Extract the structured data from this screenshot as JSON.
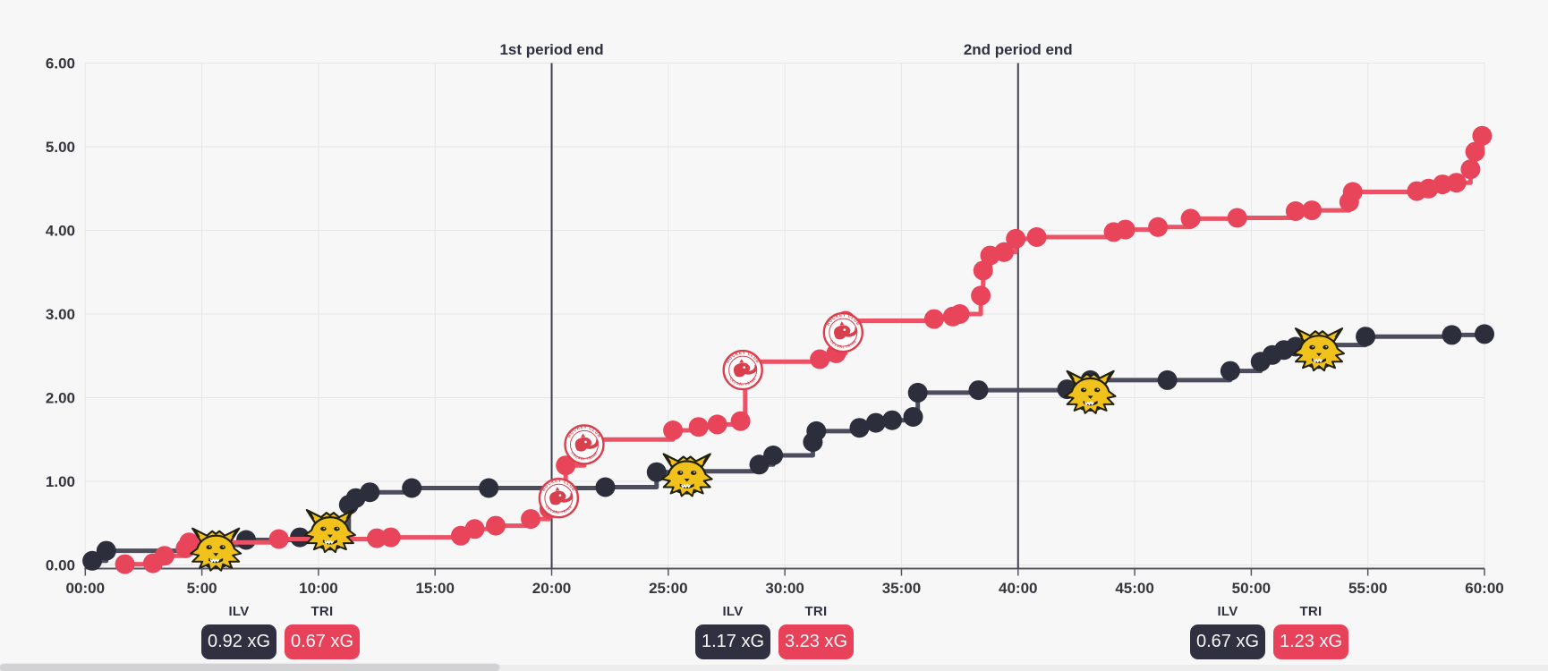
{
  "page": {
    "background": "#f7f7f8"
  },
  "teams": {
    "home": {
      "code": "ILV",
      "color": "#2f3040",
      "logo": "ilves-lynx-head"
    },
    "away": {
      "code": "TRI",
      "color": "#e8415a",
      "logo": "trinec-dragon-crest",
      "logo_text_top": "HOCKEY CLUB",
      "logo_text_bottom": "OCELÁŘI TŘINEC"
    }
  },
  "chart_data": {
    "type": "line",
    "step": "after",
    "grid": true,
    "x_range_minutes": [
      0,
      60
    ],
    "y_range": [
      0,
      6
    ],
    "x_ticks": [
      "00:00",
      "5:00",
      "10:00",
      "15:00",
      "20:00",
      "25:00",
      "30:00",
      "35:00",
      "40:00",
      "45:00",
      "50:00",
      "55:00",
      "60:00"
    ],
    "y_ticks": [
      "0.00",
      "1.00",
      "2.00",
      "3.00",
      "4.00",
      "5.00",
      "6.00"
    ],
    "annotations": [
      {
        "label": "1st period end",
        "t": 20
      },
      {
        "label": "2nd period end",
        "t": 40
      }
    ],
    "series": [
      {
        "name": "ILV",
        "marker_color": "#2d2e3c",
        "line_color": "#4b4c5c",
        "points": [
          [
            0.3,
            0.05
          ],
          [
            0.9,
            0.17
          ],
          [
            5.6,
            0.24
          ],
          [
            6.9,
            0.3
          ],
          [
            9.2,
            0.33
          ],
          [
            10.5,
            0.42
          ],
          [
            11.3,
            0.72
          ],
          [
            11.6,
            0.8
          ],
          [
            12.2,
            0.87
          ],
          [
            14.0,
            0.92
          ],
          [
            17.3,
            0.92
          ],
          [
            22.3,
            0.93
          ],
          [
            24.5,
            1.11
          ],
          [
            25.8,
            1.12
          ],
          [
            28.9,
            1.2
          ],
          [
            29.5,
            1.31
          ],
          [
            31.2,
            1.47
          ],
          [
            31.35,
            1.6
          ],
          [
            33.2,
            1.64
          ],
          [
            33.9,
            1.7
          ],
          [
            34.6,
            1.73
          ],
          [
            35.5,
            1.77
          ],
          [
            35.7,
            2.06
          ],
          [
            38.3,
            2.09
          ],
          [
            42.1,
            2.1
          ],
          [
            43.1,
            2.21
          ],
          [
            46.4,
            2.21
          ],
          [
            49.1,
            2.32
          ],
          [
            50.4,
            2.43
          ],
          [
            50.9,
            2.51
          ],
          [
            51.4,
            2.57
          ],
          [
            51.9,
            2.61
          ],
          [
            52.9,
            2.63
          ],
          [
            54.9,
            2.73
          ],
          [
            58.6,
            2.75
          ],
          [
            60,
            2.76
          ]
        ],
        "goals": [
          [
            5.6,
            0.18
          ],
          [
            10.5,
            0.4
          ],
          [
            25.8,
            1.07
          ],
          [
            43.1,
            2.06
          ],
          [
            52.9,
            2.57
          ]
        ]
      },
      {
        "name": "TRI",
        "marker_color": "#e8445a",
        "line_color": "#ea5366",
        "points": [
          [
            1.7,
            0.01
          ],
          [
            2.9,
            0.02
          ],
          [
            3.4,
            0.11
          ],
          [
            4.3,
            0.2
          ],
          [
            4.45,
            0.27
          ],
          [
            8.3,
            0.31
          ],
          [
            12.5,
            0.32
          ],
          [
            13.1,
            0.33
          ],
          [
            16.1,
            0.35
          ],
          [
            16.7,
            0.43
          ],
          [
            17.6,
            0.47
          ],
          [
            19.1,
            0.55
          ],
          [
            19.9,
            0.67
          ],
          [
            20.6,
            1.19
          ],
          [
            21.4,
            1.5
          ],
          [
            25.2,
            1.61
          ],
          [
            26.3,
            1.65
          ],
          [
            27.1,
            1.68
          ],
          [
            28.1,
            1.72
          ],
          [
            28.3,
            2.43
          ],
          [
            31.5,
            2.46
          ],
          [
            32.2,
            2.53
          ],
          [
            32.6,
            2.92
          ],
          [
            36.4,
            2.94
          ],
          [
            37.2,
            2.97
          ],
          [
            37.5,
            3.0
          ],
          [
            38.4,
            3.22
          ],
          [
            38.5,
            3.52
          ],
          [
            38.8,
            3.7
          ],
          [
            39.4,
            3.74
          ],
          [
            39.9,
            3.9
          ],
          [
            40.8,
            3.92
          ],
          [
            44.1,
            3.98
          ],
          [
            44.6,
            4.01
          ],
          [
            46.0,
            4.04
          ],
          [
            47.4,
            4.14
          ],
          [
            49.4,
            4.15
          ],
          [
            51.9,
            4.23
          ],
          [
            52.6,
            4.24
          ],
          [
            54.2,
            4.34
          ],
          [
            54.35,
            4.46
          ],
          [
            57.1,
            4.47
          ],
          [
            57.6,
            4.5
          ],
          [
            58.2,
            4.55
          ],
          [
            58.8,
            4.57
          ],
          [
            59.4,
            4.73
          ],
          [
            59.6,
            4.94
          ],
          [
            59.9,
            5.13
          ]
        ],
        "goals": [
          [
            20.3,
            0.8
          ],
          [
            21.4,
            1.44
          ],
          [
            28.2,
            2.33
          ],
          [
            32.5,
            2.78
          ]
        ]
      }
    ]
  },
  "period_stats": [
    {
      "home_label": "ILV",
      "away_label": "TRI",
      "home_xg": "0.92 xG",
      "away_xg": "0.67 xG"
    },
    {
      "home_label": "ILV",
      "away_label": "TRI",
      "home_xg": "1.17 xG",
      "away_xg": "3.23 xG"
    },
    {
      "home_label": "ILV",
      "away_label": "TRI",
      "home_xg": "0.67 xG",
      "away_xg": "1.23 xG"
    }
  ]
}
